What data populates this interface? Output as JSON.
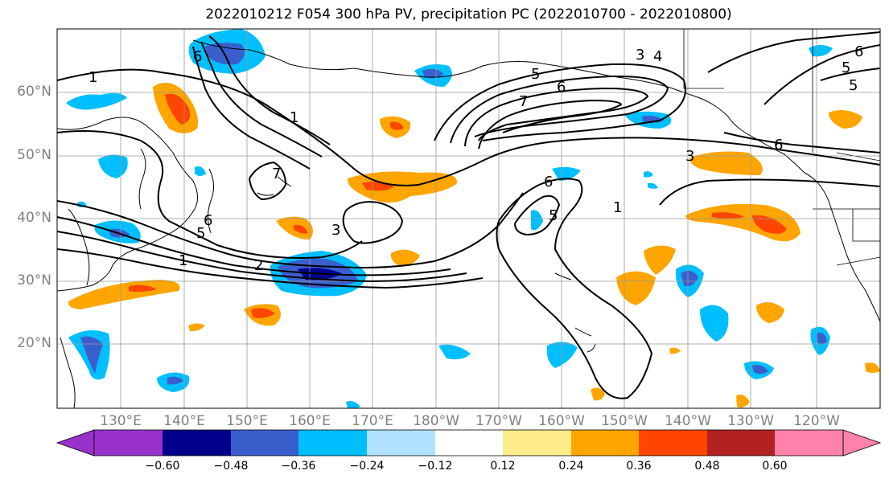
{
  "title": "2022010212 F054 300 hPa PV, precipitation PC (2022010700 - 2022010800)",
  "latitude_labels": [
    "60°N",
    "50°N",
    "40°N",
    "30°N",
    "20°N"
  ],
  "longitude_labels": [
    "130°E",
    "140°E",
    "150°E",
    "160°E",
    "170°E",
    "180°W",
    "170°W",
    "160°W",
    "150°W",
    "140°W",
    "130°W",
    "120°W"
  ],
  "colorbar": {
    "colors": [
      "#9932cc",
      "#00008b",
      "#3a5fcd",
      "#00bfff",
      "#b0e2ff",
      "#ffffff",
      "#ffec8b",
      "#ffa500",
      "#ff4500",
      "#b22222",
      "#ff82ab"
    ],
    "tick_labels": [
      "−0.60",
      "−0.48",
      "−0.36",
      "−0.24",
      "−0.12",
      "0.12",
      "0.24",
      "0.36",
      "0.48",
      "0.60"
    ]
  },
  "pv_contour_labels": [
    "1",
    "2",
    "3",
    "4",
    "5",
    "6",
    "7"
  ]
}
